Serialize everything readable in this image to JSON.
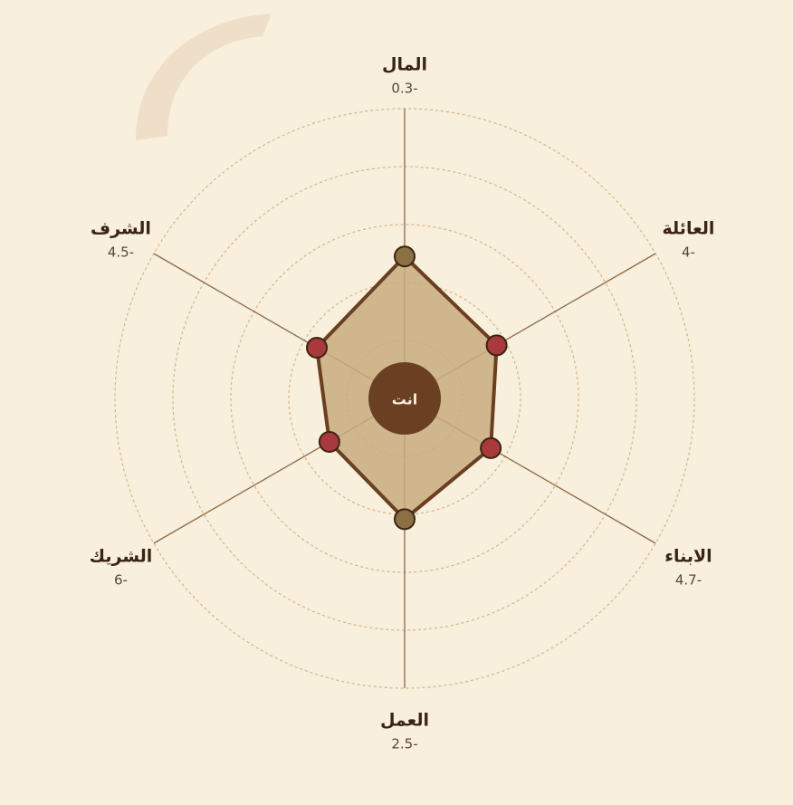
{
  "chart_data": {
    "type": "radar",
    "center_label": "انت",
    "categories": [
      "المال",
      "العائلة",
      "الابناء",
      "العمل",
      "الشريك",
      "الشرف"
    ],
    "values": [
      -0.3,
      -4,
      -4.7,
      -2.5,
      -6,
      -4.5
    ],
    "value_labels": [
      "0.3-",
      "4-",
      "4.7-",
      "2.5-",
      "6-",
      "4.5-"
    ],
    "point_colors": [
      "#8b7044",
      "#a8393d",
      "#a8393d",
      "#8b7044",
      "#a8393d",
      "#a8393d"
    ],
    "fill": "#c9ac7f",
    "stroke": "#6a3f20",
    "rlim": [
      -15,
      15
    ],
    "rticks": [
      -9,
      -3,
      3,
      9,
      15
    ],
    "grid": true
  }
}
